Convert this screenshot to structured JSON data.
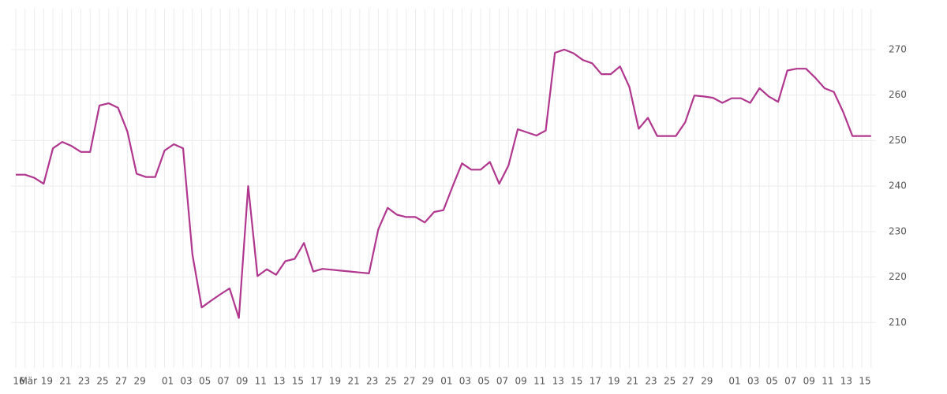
{
  "chart_data": {
    "type": "line",
    "categories": [
      "16",
      "Mär",
      null,
      "19",
      null,
      "21",
      null,
      "23",
      null,
      "25",
      null,
      "27",
      null,
      "29",
      null,
      null,
      "01",
      null,
      "03",
      null,
      "05",
      null,
      "07",
      null,
      "09",
      null,
      "11",
      null,
      "13",
      null,
      "15",
      null,
      "17",
      null,
      "19",
      null,
      "21",
      null,
      "23",
      null,
      "25",
      null,
      "27",
      null,
      "29",
      null,
      "01",
      null,
      "03",
      null,
      "05",
      null,
      "07",
      null,
      "09",
      null,
      "11",
      null,
      "13",
      null,
      "15",
      null,
      "17",
      null,
      "19",
      null,
      "21",
      null,
      "23",
      null,
      "25",
      null,
      "27",
      null,
      "29",
      null,
      null,
      "01",
      null,
      "03",
      null,
      "05",
      null,
      "07",
      null,
      "09",
      null,
      "11",
      null,
      "13",
      null,
      "15",
      null
    ],
    "series": [
      {
        "color": "#b0368e",
        "values": [
          242.5,
          242.5,
          241.8,
          240.5,
          248.3,
          249.7,
          248.8,
          247.5,
          247.5,
          257.7,
          258.2,
          257.2,
          252,
          242.7,
          242,
          242,
          247.8,
          249.2,
          248.3,
          225,
          213.3,
          214.8,
          216.2,
          217.5,
          211,
          240,
          220.2,
          221.7,
          220.5,
          223.5,
          224,
          227.5,
          221.2,
          221.8,
          221.6,
          221.4,
          221.2,
          221,
          220.8,
          230.5,
          235.2,
          233.7,
          233.2,
          233.2,
          232,
          234.3,
          234.7,
          240,
          245,
          243.6,
          243.6,
          245.3,
          240.5,
          244.5,
          252.5,
          251.8,
          251.1,
          252.2,
          269.3,
          270,
          269.2,
          267.7,
          267,
          264.6,
          264.6,
          266.3,
          261.8,
          252.6,
          255,
          251,
          251,
          251,
          254,
          259.9,
          259.7,
          259.4,
          258.3,
          259.3,
          259.3,
          258.3,
          261.5,
          259.7,
          258.5,
          265.4,
          265.8,
          265.8,
          263.8,
          261.5,
          260.7,
          256.3,
          251,
          251,
          251
        ]
      }
    ],
    "ylim": [
      200,
      279
    ],
    "yticks": [
      210,
      220,
      230,
      240,
      250,
      260,
      270
    ],
    "grid": true
  }
}
